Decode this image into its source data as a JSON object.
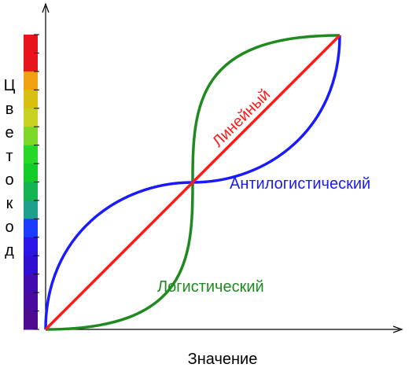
{
  "diagram": {
    "x_axis_label": "Значение",
    "y_axis_label_letters": [
      "Ц",
      "в",
      "е",
      "т",
      "о",
      "к",
      "о",
      "д"
    ],
    "curve_labels": {
      "linear": "Линейный",
      "antilogistic": "Антилогистический",
      "logistic": "Логистический"
    },
    "colors": {
      "linear": "#ff1a1a",
      "antilogistic": "#1a1aff",
      "logistic": "#1f8a1f",
      "axis": "#000000"
    },
    "colorbar_stops": [
      "#e8141c",
      "#e8141c",
      "#f0a010",
      "#d8c010",
      "#c8d020",
      "#7fd828",
      "#28d828",
      "#14cc28",
      "#14b450",
      "#1ea08c",
      "#1a3cff",
      "#2a14e8",
      "#3010d0",
      "#400cb0",
      "#4a0aa0",
      "#4e0a90"
    ]
  }
}
